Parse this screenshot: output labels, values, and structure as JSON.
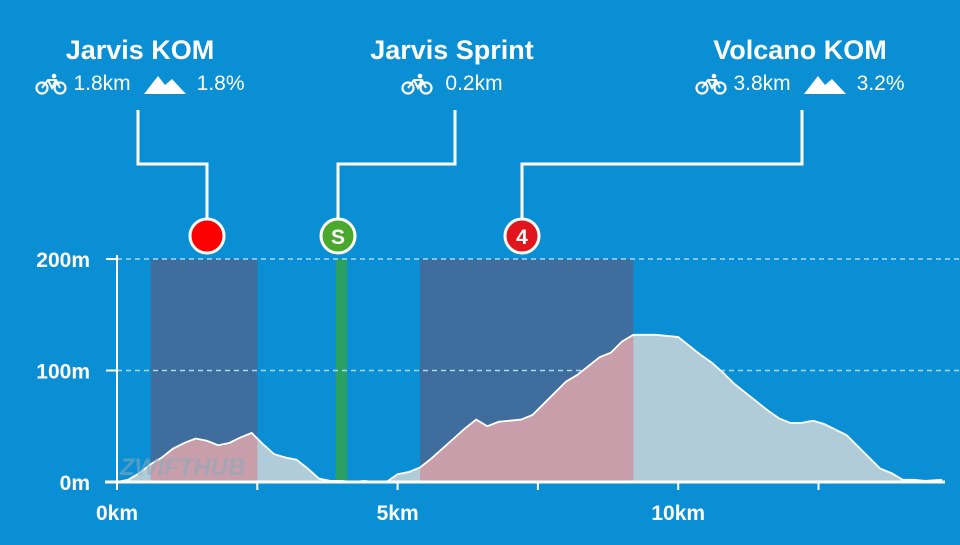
{
  "watermark": "ZWIFTHUB",
  "segments": [
    {
      "name": "Jarvis KOM",
      "type": "kom",
      "length": "1.8km",
      "grade": "1.8%",
      "badge": "",
      "badge_color": "#ff0000",
      "start_km": 0.6,
      "end_km": 2.5,
      "fill_color": "#3f6e9e"
    },
    {
      "name": "Jarvis Sprint",
      "type": "sprint",
      "length": "0.2km",
      "badge": "S",
      "badge_color": "#4aa82c",
      "start_km": 3.9,
      "end_km": 4.1,
      "fill_color": "#2aa161"
    },
    {
      "name": "Volcano KOM",
      "type": "kom",
      "length": "3.8km",
      "grade": "3.2%",
      "badge": "4",
      "badge_color": "#e0161c",
      "start_km": 5.4,
      "end_km": 9.2,
      "fill_color": "#3f6e9e"
    }
  ],
  "chart_data": {
    "type": "area",
    "xlabel": "",
    "ylabel": "",
    "xlim": [
      0,
      14.7
    ],
    "ylim": [
      0,
      200
    ],
    "x_ticks": [
      {
        "value": 0,
        "label": "0km"
      },
      {
        "value": 5,
        "label": "5km"
      },
      {
        "value": 10,
        "label": "10km"
      }
    ],
    "y_ticks": [
      {
        "value": 0,
        "label": "0m"
      },
      {
        "value": 100,
        "label": "100m"
      },
      {
        "value": 200,
        "label": "200m"
      }
    ],
    "x_minor_ticks": [
      2.5,
      7.5,
      12.5
    ],
    "grid": "dashed horizontal at 100m and 200m",
    "colors": {
      "profile_fill": "#b0ccd8",
      "profile_line": "#ffffff",
      "climb_fill": "#c79ea9",
      "grid": "#a8d8f2"
    },
    "series": [
      {
        "x": [
          0,
          0.2,
          0.4,
          0.6,
          0.8,
          1.0,
          1.2,
          1.4,
          1.6,
          1.8,
          2.0,
          2.2,
          2.4,
          2.6,
          2.8,
          3.0,
          3.2,
          3.4,
          3.6,
          3.8,
          4.0,
          4.2,
          4.4,
          4.6,
          4.8,
          5.0,
          5.2,
          5.4,
          5.6,
          5.8,
          6.0,
          6.2,
          6.4,
          6.6,
          6.8,
          7.0,
          7.2,
          7.4,
          7.6,
          7.8,
          8.0,
          8.2,
          8.4,
          8.6,
          8.8,
          9.0,
          9.2,
          9.6,
          10.0,
          10.2,
          10.4,
          10.6,
          10.8,
          11.0,
          11.2,
          11.4,
          11.6,
          11.8,
          12.0,
          12.2,
          12.4,
          12.6,
          12.8,
          13.0,
          13.2,
          13.4,
          13.6,
          13.8,
          14.0,
          14.2,
          14.4,
          14.7
        ],
        "y": [
          0,
          2,
          8,
          16,
          22,
          30,
          35,
          39,
          37,
          33,
          35,
          40,
          44,
          34,
          25,
          22,
          20,
          12,
          3,
          1,
          1,
          0,
          1,
          0,
          0,
          7,
          9,
          13,
          21,
          30,
          39,
          48,
          56,
          50,
          54,
          55,
          56,
          60,
          70,
          80,
          90,
          96,
          104,
          112,
          116,
          126,
          132,
          132,
          130,
          122,
          114,
          107,
          98,
          88,
          80,
          72,
          64,
          57,
          53,
          53,
          55,
          52,
          47,
          42,
          32,
          22,
          12,
          8,
          2,
          2,
          1,
          2
        ]
      }
    ]
  }
}
